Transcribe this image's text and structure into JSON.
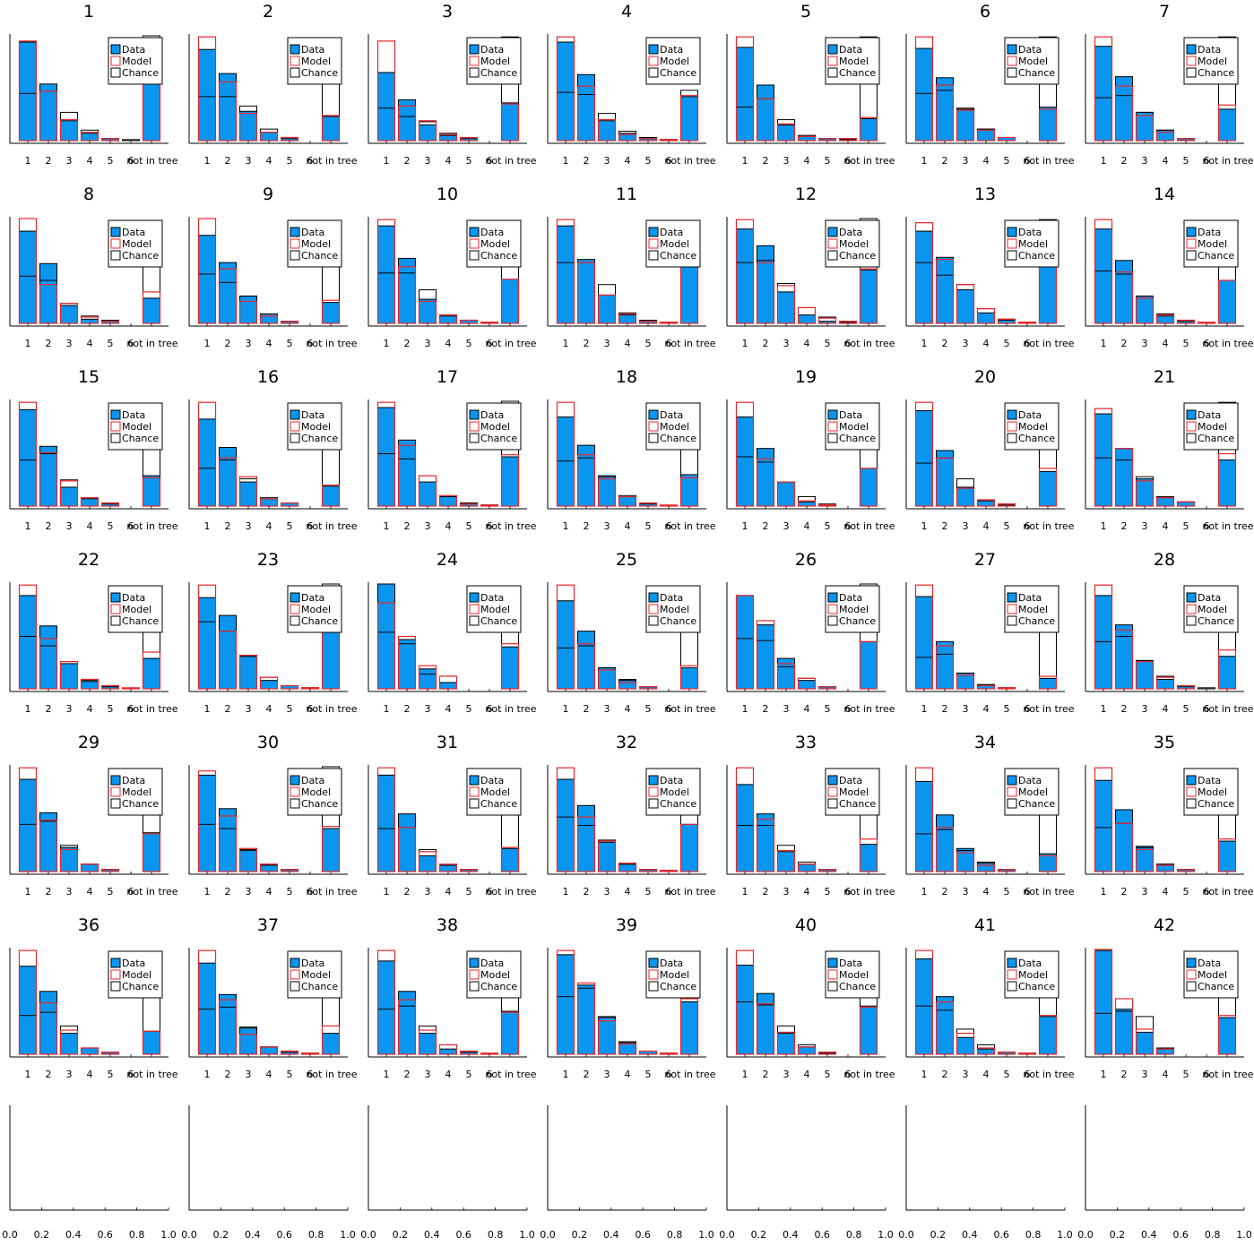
{
  "figure": {
    "layout": "7 columns x 7 rows of panels; last row empty axes"
  },
  "colors": {
    "data": "#0a96ef",
    "model": "#e8262a",
    "chance": "#000000",
    "axis": "#000000"
  },
  "chart_data": {
    "type": "bar",
    "description_mode": "overlaid bars per panel",
    "categories": [
      "1",
      "2",
      "3",
      "4",
      "5",
      "6",
      "not in tree"
    ],
    "legend": [
      "Data",
      "Model",
      "Chance"
    ],
    "ylim": [
      0,
      1
    ],
    "panels": [
      {
        "title": "1",
        "data": [
          0.94,
          0.54,
          0.19,
          0.07,
          0.02,
          0,
          0.54
        ],
        "model": [
          0.95,
          0.47,
          0.2,
          0.08,
          0.02,
          0,
          0.55
        ],
        "chance": [
          0.45,
          0.47,
          0.27,
          0.1,
          0.02,
          0.01,
          1.0
        ]
      },
      {
        "title": "2",
        "data": [
          0.87,
          0.64,
          0.28,
          0.08,
          0.02,
          0,
          0.23
        ],
        "model": [
          0.99,
          0.56,
          0.26,
          0.08,
          0.03,
          0,
          0.24
        ],
        "chance": [
          0.42,
          0.42,
          0.33,
          0.11,
          0.03,
          0,
          0.97
        ]
      },
      {
        "title": "3",
        "data": [
          0.65,
          0.39,
          0.15,
          0.05,
          0.02,
          0,
          0.36
        ],
        "model": [
          0.95,
          0.33,
          0.19,
          0.06,
          0.03,
          0,
          0.35
        ],
        "chance": [
          0.31,
          0.23,
          0.18,
          0.07,
          0.03,
          0,
          0.99
        ]
      },
      {
        "title": "4",
        "data": [
          0.94,
          0.63,
          0.19,
          0.07,
          0.02,
          0.01,
          0.42
        ],
        "model": [
          0.99,
          0.52,
          0.2,
          0.06,
          0.02,
          0.01,
          0.43
        ],
        "chance": [
          0.46,
          0.44,
          0.26,
          0.09,
          0.03,
          0.01,
          0.48
        ]
      },
      {
        "title": "5",
        "data": [
          0.89,
          0.53,
          0.15,
          0.04,
          0.02,
          0.02,
          0.21
        ],
        "model": [
          0.99,
          0.4,
          0.16,
          0.04,
          0.02,
          0.02,
          0.22
        ],
        "chance": [
          0.32,
          0.4,
          0.2,
          0.05,
          0.02,
          0.01,
          0.99
        ]
      },
      {
        "title": "6",
        "data": [
          0.88,
          0.6,
          0.3,
          0.11,
          0.03,
          0,
          0.32
        ],
        "model": [
          0.99,
          0.53,
          0.29,
          0.1,
          0.03,
          0,
          0.3
        ],
        "chance": [
          0.45,
          0.48,
          0.31,
          0.11,
          0.03,
          0,
          0.99
        ]
      },
      {
        "title": "7",
        "data": [
          0.9,
          0.61,
          0.27,
          0.1,
          0.02,
          0,
          0.3
        ],
        "model": [
          0.99,
          0.52,
          0.24,
          0.08,
          0.02,
          0,
          0.34
        ],
        "chance": [
          0.41,
          0.43,
          0.27,
          0.1,
          0.02,
          0,
          0.99
        ]
      },
      {
        "title": "8",
        "data": [
          0.88,
          0.57,
          0.17,
          0.04,
          0.02,
          0,
          0.24
        ],
        "model": [
          1.0,
          0.37,
          0.19,
          0.06,
          0.02,
          0,
          0.3
        ],
        "chance": [
          0.45,
          0.41,
          0.19,
          0.07,
          0.03,
          0,
          0.54
        ]
      },
      {
        "title": "9",
        "data": [
          0.84,
          0.58,
          0.26,
          0.09,
          0.02,
          0,
          0.2
        ],
        "model": [
          1.0,
          0.52,
          0.21,
          0.07,
          0.02,
          0,
          0.22
        ],
        "chance": [
          0.47,
          0.39,
          0.26,
          0.09,
          0.02,
          0,
          0.54
        ]
      },
      {
        "title": "10",
        "data": [
          0.93,
          0.62,
          0.23,
          0.07,
          0.03,
          0.01,
          0.42
        ],
        "model": [
          0.99,
          0.54,
          0.21,
          0.08,
          0.03,
          0.01,
          0.42
        ],
        "chance": [
          0.48,
          0.48,
          0.32,
          0.08,
          0.03,
          0.01,
          0.54
        ]
      },
      {
        "title": "11",
        "data": [
          0.93,
          0.61,
          0.27,
          0.08,
          0.02,
          0.01,
          0.56
        ],
        "model": [
          0.99,
          0.58,
          0.27,
          0.09,
          0.02,
          0.01,
          0.6
        ],
        "chance": [
          0.58,
          0.58,
          0.37,
          0.1,
          0.03,
          0.01,
          0.6
        ]
      },
      {
        "title": "12",
        "data": [
          0.9,
          0.74,
          0.3,
          0.08,
          0.02,
          0.01,
          0.51
        ],
        "model": [
          0.99,
          0.58,
          0.36,
          0.15,
          0.05,
          0.02,
          0.52
        ],
        "chance": [
          0.58,
          0.6,
          0.38,
          0.15,
          0.06,
          0.02,
          1.0
        ]
      },
      {
        "title": "13",
        "data": [
          0.88,
          0.63,
          0.32,
          0.1,
          0.03,
          0.01,
          0.98
        ],
        "model": [
          0.96,
          0.61,
          0.37,
          0.14,
          0.04,
          0.01,
          0.98
        ],
        "chance": [
          0.58,
          0.46,
          0.37,
          0.14,
          0.04,
          0.01,
          0.99
        ]
      },
      {
        "title": "14",
        "data": [
          0.9,
          0.6,
          0.26,
          0.07,
          0.02,
          0,
          0.41
        ],
        "model": [
          0.99,
          0.49,
          0.24,
          0.08,
          0.03,
          0.01,
          0.41
        ],
        "chance": [
          0.5,
          0.47,
          0.26,
          0.09,
          0.03,
          0.01,
          0.54
        ]
      },
      {
        "title": "15",
        "data": [
          0.92,
          0.57,
          0.18,
          0.07,
          0.02,
          0,
          0.29
        ],
        "model": [
          0.99,
          0.51,
          0.24,
          0.08,
          0.03,
          0,
          0.27
        ],
        "chance": [
          0.44,
          0.5,
          0.25,
          0.08,
          0.03,
          0,
          0.54
        ]
      },
      {
        "title": "16",
        "data": [
          0.83,
          0.56,
          0.23,
          0.07,
          0.03,
          0,
          0.19
        ],
        "model": [
          0.99,
          0.46,
          0.28,
          0.07,
          0.03,
          0,
          0.2
        ],
        "chance": [
          0.36,
          0.44,
          0.26,
          0.08,
          0.03,
          0,
          0.54
        ]
      },
      {
        "title": "17",
        "data": [
          0.94,
          0.63,
          0.23,
          0.09,
          0.02,
          0.01,
          0.47
        ],
        "model": [
          0.99,
          0.58,
          0.29,
          0.1,
          0.02,
          0.01,
          0.49
        ],
        "chance": [
          0.5,
          0.45,
          0.29,
          0.09,
          0.03,
          0.01,
          1.0
        ]
      },
      {
        "title": "18",
        "data": [
          0.85,
          0.58,
          0.28,
          0.09,
          0.02,
          0,
          0.3
        ],
        "model": [
          0.99,
          0.49,
          0.26,
          0.09,
          0.03,
          0.01,
          0.27
        ],
        "chance": [
          0.43,
          0.46,
          0.29,
          0.1,
          0.03,
          0,
          0.54
        ]
      },
      {
        "title": "19",
        "data": [
          0.85,
          0.55,
          0.23,
          0.04,
          0.01,
          0,
          0.36
        ],
        "model": [
          0.99,
          0.45,
          0.23,
          0.05,
          0.01,
          0,
          0.36
        ],
        "chance": [
          0.47,
          0.42,
          0.23,
          0.09,
          0.02,
          0,
          0.54
        ]
      },
      {
        "title": "20",
        "data": [
          0.91,
          0.53,
          0.18,
          0.05,
          0.01,
          0,
          0.33
        ],
        "model": [
          0.99,
          0.46,
          0.17,
          0.06,
          0.02,
          0,
          0.36
        ],
        "chance": [
          0.41,
          0.46,
          0.26,
          0.06,
          0.02,
          0,
          0.54
        ]
      },
      {
        "title": "21",
        "data": [
          0.88,
          0.55,
          0.26,
          0.08,
          0.04,
          0,
          0.44
        ],
        "model": [
          0.93,
          0.55,
          0.24,
          0.08,
          0.04,
          0,
          0.5
        ],
        "chance": [
          0.46,
          0.44,
          0.28,
          0.09,
          0.04,
          0,
          0.99
        ]
      },
      {
        "title": "22",
        "data": [
          0.89,
          0.6,
          0.24,
          0.07,
          0.02,
          0,
          0.29
        ],
        "model": [
          0.99,
          0.48,
          0.26,
          0.09,
          0.03,
          0.01,
          0.35
        ],
        "chance": [
          0.5,
          0.41,
          0.26,
          0.08,
          0.02,
          0,
          0.54
        ]
      },
      {
        "title": "23",
        "data": [
          0.87,
          0.7,
          0.31,
          0.08,
          0.03,
          0.01,
          0.54
        ],
        "model": [
          0.99,
          0.55,
          0.32,
          0.11,
          0.03,
          0.01,
          0.54
        ],
        "chance": [
          0.64,
          0.55,
          0.31,
          0.11,
          0.03,
          0.01,
          1.0
        ]
      },
      {
        "title": "24",
        "data": [
          1.0,
          0.47,
          0.19,
          0.06,
          0,
          0,
          0.4
        ],
        "model": [
          0.82,
          0.5,
          0.22,
          0.12,
          0,
          0,
          0.43
        ],
        "chance": [
          0.54,
          0.43,
          0.14,
          0.12,
          0,
          0,
          0.54
        ]
      },
      {
        "title": "25",
        "data": [
          0.84,
          0.55,
          0.2,
          0.09,
          0.02,
          0,
          0.2
        ],
        "model": [
          0.99,
          0.43,
          0.18,
          0.06,
          0.02,
          0,
          0.22
        ],
        "chance": [
          0.39,
          0.41,
          0.2,
          0.08,
          0.02,
          0,
          0.54
        ]
      },
      {
        "title": "26",
        "data": [
          0.89,
          0.61,
          0.29,
          0.08,
          0.02,
          0,
          0.45
        ],
        "model": [
          0.89,
          0.65,
          0.24,
          0.1,
          0.02,
          0,
          0.45
        ],
        "chance": [
          0.48,
          0.46,
          0.21,
          0.1,
          0.02,
          0,
          1.0
        ]
      },
      {
        "title": "27",
        "data": [
          0.88,
          0.45,
          0.15,
          0.04,
          0.01,
          0,
          0.1
        ],
        "model": [
          0.99,
          0.41,
          0.13,
          0.03,
          0.01,
          0,
          0.12
        ],
        "chance": [
          0.3,
          0.33,
          0.15,
          0.04,
          0.01,
          0,
          0.54
        ]
      },
      {
        "title": "28",
        "data": [
          0.89,
          0.61,
          0.27,
          0.09,
          0.02,
          0,
          0.31
        ],
        "model": [
          0.99,
          0.56,
          0.26,
          0.11,
          0.03,
          0,
          0.37
        ],
        "chance": [
          0.45,
          0.5,
          0.27,
          0.12,
          0.03,
          0.01,
          0.54
        ]
      },
      {
        "title": "29",
        "data": [
          0.88,
          0.56,
          0.23,
          0.07,
          0.02,
          0,
          0.37
        ],
        "model": [
          0.99,
          0.49,
          0.21,
          0.07,
          0.02,
          0,
          0.36
        ],
        "chance": [
          0.45,
          0.48,
          0.25,
          0.07,
          0.02,
          0,
          0.54
        ]
      },
      {
        "title": "30",
        "data": [
          0.92,
          0.6,
          0.2,
          0.06,
          0.02,
          0,
          0.41
        ],
        "model": [
          0.96,
          0.53,
          0.22,
          0.07,
          0.02,
          0,
          0.43
        ],
        "chance": [
          0.45,
          0.41,
          0.21,
          0.07,
          0.02,
          0,
          1.0
        ]
      },
      {
        "title": "31",
        "data": [
          0.92,
          0.55,
          0.15,
          0.06,
          0.02,
          0,
          0.22
        ],
        "model": [
          0.99,
          0.42,
          0.19,
          0.07,
          0.02,
          0,
          0.23
        ],
        "chance": [
          0.41,
          0.42,
          0.21,
          0.06,
          0.02,
          0,
          0.54
        ]
      },
      {
        "title": "32",
        "data": [
          0.88,
          0.63,
          0.28,
          0.07,
          0.02,
          0.01,
          0.45
        ],
        "model": [
          0.99,
          0.52,
          0.29,
          0.08,
          0.02,
          0.01,
          0.45
        ],
        "chance": [
          0.52,
          0.44,
          0.3,
          0.07,
          0.02,
          0.01,
          0.54
        ]
      },
      {
        "title": "33",
        "data": [
          0.83,
          0.55,
          0.19,
          0.07,
          0.02,
          0,
          0.26
        ],
        "model": [
          0.99,
          0.5,
          0.2,
          0.07,
          0.02,
          0,
          0.31
        ],
        "chance": [
          0.44,
          0.44,
          0.25,
          0.09,
          0.02,
          0,
          0.54
        ]
      },
      {
        "title": "34",
        "data": [
          0.86,
          0.54,
          0.22,
          0.08,
          0.02,
          0,
          0.17
        ],
        "model": [
          0.99,
          0.42,
          0.18,
          0.06,
          0.02,
          0,
          0.15
        ],
        "chance": [
          0.36,
          0.4,
          0.2,
          0.09,
          0.02,
          0,
          0.54
        ]
      },
      {
        "title": "35",
        "data": [
          0.87,
          0.59,
          0.24,
          0.07,
          0.02,
          0,
          0.29
        ],
        "model": [
          0.99,
          0.46,
          0.21,
          0.06,
          0.02,
          0,
          0.31
        ],
        "chance": [
          0.42,
          0.46,
          0.23,
          0.07,
          0.02,
          0,
          0.54
        ]
      },
      {
        "title": "36",
        "data": [
          0.84,
          0.6,
          0.2,
          0.06,
          0.02,
          0,
          0.22
        ],
        "model": [
          0.99,
          0.49,
          0.23,
          0.06,
          0.02,
          0,
          0.22
        ],
        "chance": [
          0.37,
          0.4,
          0.27,
          0.06,
          0.02,
          0,
          0.54
        ]
      },
      {
        "title": "37",
        "data": [
          0.87,
          0.57,
          0.25,
          0.07,
          0.02,
          0.01,
          0.2
        ],
        "model": [
          0.99,
          0.52,
          0.19,
          0.07,
          0.03,
          0.01,
          0.27
        ],
        "chance": [
          0.43,
          0.45,
          0.26,
          0.07,
          0.03,
          0.01,
          0.54
        ]
      },
      {
        "title": "38",
        "data": [
          0.89,
          0.6,
          0.2,
          0.05,
          0.02,
          0,
          0.41
        ],
        "model": [
          0.99,
          0.52,
          0.23,
          0.09,
          0.03,
          0.01,
          0.4
        ],
        "chance": [
          0.43,
          0.46,
          0.27,
          0.09,
          0.03,
          0.01,
          0.54
        ]
      },
      {
        "title": "39",
        "data": [
          0.95,
          0.66,
          0.35,
          0.11,
          0.03,
          0.01,
          0.5
        ],
        "model": [
          0.99,
          0.68,
          0.32,
          0.1,
          0.03,
          0.01,
          0.53
        ],
        "chance": [
          0.55,
          0.63,
          0.36,
          0.12,
          0.03,
          0.01,
          0.54
        ]
      },
      {
        "title": "40",
        "data": [
          0.85,
          0.58,
          0.2,
          0.07,
          0.01,
          0,
          0.46
        ],
        "model": [
          0.99,
          0.48,
          0.21,
          0.07,
          0.02,
          0,
          0.45
        ],
        "chance": [
          0.5,
          0.47,
          0.27,
          0.09,
          0.02,
          0,
          0.54
        ]
      },
      {
        "title": "41",
        "data": [
          0.91,
          0.55,
          0.16,
          0.05,
          0.02,
          0.01,
          0.36
        ],
        "model": [
          0.99,
          0.5,
          0.2,
          0.06,
          0.02,
          0.01,
          0.37
        ],
        "chance": [
          0.46,
          0.42,
          0.24,
          0.09,
          0.02,
          0.01,
          0.54
        ]
      },
      {
        "title": "42",
        "data": [
          0.99,
          0.43,
          0.21,
          0.05,
          0,
          0,
          0.35
        ],
        "model": [
          1.0,
          0.53,
          0.24,
          0.05,
          0,
          0,
          0.37
        ],
        "chance": [
          0.39,
          0.41,
          0.36,
          0.06,
          0,
          0,
          0.54
        ]
      }
    ],
    "empty_axes": {
      "count": 7,
      "xticks": [
        "0.0",
        "0.2",
        "0.4",
        "0.6",
        "0.8",
        "1.0"
      ],
      "xlim": [
        0,
        1
      ]
    }
  }
}
